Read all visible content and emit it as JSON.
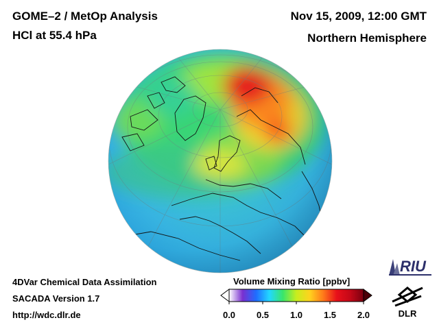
{
  "header": {
    "title_line1": "GOME–2 / MetOp Analysis",
    "title_line2": "HCl at 55.4 hPa",
    "datetime": "Nov 15, 2009, 12:00 GMT",
    "region": "Northern Hemisphere"
  },
  "footer": {
    "line1": "4DVar Chemical Data Assimilation",
    "line2": "SACADA Version 1.7",
    "line3": "http://wdc.dlr.de"
  },
  "colorbar": {
    "title": "Volume Mixing Ratio [ppbv]",
    "ticks": [
      "0.0",
      "0.5",
      "1.0",
      "1.5",
      "2.0"
    ],
    "range": [
      0.0,
      2.0
    ],
    "colors": [
      "#ffffff",
      "#7a2fd0",
      "#1f6cff",
      "#22d8ff",
      "#39e66a",
      "#c8ee1e",
      "#ffd21e",
      "#ff7a1a",
      "#e8101a",
      "#c40818",
      "#7a0010"
    ]
  },
  "logos": {
    "riu": "RIU",
    "dlr": "DLR"
  },
  "map": {
    "projection": "orthographic",
    "field": "HCl volume mixing ratio",
    "features": [
      "coastlines",
      "graticule",
      "north-pole-center"
    ]
  }
}
